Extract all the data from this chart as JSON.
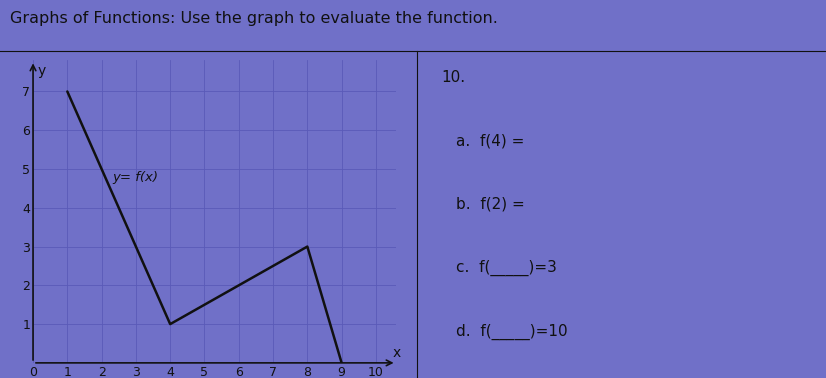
{
  "title": "Graphs of Functions: Use the graph to evaluate the function.",
  "graph_label": "y= f(x)",
  "function_points_x": [
    1,
    4,
    8,
    9
  ],
  "function_points_y": [
    7,
    1,
    3,
    0
  ],
  "xlim": [
    0,
    10.6
  ],
  "ylim": [
    0,
    7.8
  ],
  "xticks": [
    0,
    1,
    2,
    3,
    4,
    5,
    6,
    7,
    8,
    9,
    10
  ],
  "yticks": [
    1,
    2,
    3,
    4,
    5,
    6,
    7
  ],
  "xlabel": "x",
  "ylabel": "y",
  "bg_color": "#7070c8",
  "graph_bg_color": "#7070c8",
  "line_color": "#111111",
  "text_color": "#111111",
  "grid_color": "#5a5ab8",
  "problem_number": "10.",
  "questions": [
    "a.  f(4) =",
    "b.  f(2) =",
    "c.  f(_____)=3",
    "d.  f(_____)=10"
  ],
  "font_size_title": 11.5,
  "font_size_axis": 9,
  "font_size_label": 10,
  "font_size_questions": 11
}
